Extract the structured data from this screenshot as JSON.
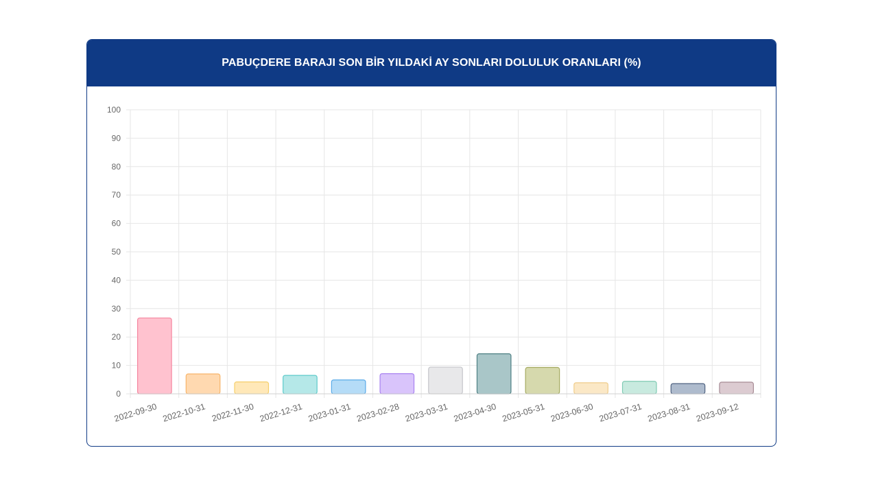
{
  "card": {
    "title": "PABUÇDERE BARAJI SON BİR YILDAKİ AY SONLARI DOLULUK ORANLARI (%)"
  },
  "colors": {
    "header": "#0f3a85",
    "grid": "#e6e6e6",
    "tick_text": "#666666"
  },
  "chart_data": {
    "type": "bar",
    "title": "PABUÇDERE BARAJI SON BİR YILDAKİ AY SONLARI DOLULUK ORANLARI (%)",
    "xlabel": "",
    "ylabel": "",
    "ylim": [
      0,
      100
    ],
    "yticks": [
      0,
      10,
      20,
      30,
      40,
      50,
      60,
      70,
      80,
      90,
      100
    ],
    "grid": true,
    "legend": "none",
    "categories": [
      "2022-09-30",
      "2022-10-31",
      "2022-11-30",
      "2022-12-31",
      "2023-01-31",
      "2023-02-28",
      "2023-03-31",
      "2023-04-30",
      "2023-05-31",
      "2023-06-30",
      "2023-07-31",
      "2023-08-31",
      "2023-09-12"
    ],
    "values": [
      26.7,
      7.0,
      4.2,
      6.5,
      4.9,
      7.1,
      9.4,
      14.1,
      9.3,
      3.9,
      4.4,
      3.6,
      4.1
    ],
    "bar_fill_colors": [
      "#ffc2cf",
      "#ffd9b0",
      "#ffe8b8",
      "#b5e8e8",
      "#b5dcf7",
      "#d9c4fb",
      "#e8e8ea",
      "#a9c6c8",
      "#d6d9ad",
      "#fbe8c6",
      "#c8eadf",
      "#aebbcd",
      "#dccbd1"
    ],
    "bar_border_colors": [
      "#f4869f",
      "#f7b56a",
      "#f5cf6c",
      "#5cc9c9",
      "#5aaae8",
      "#a881f0",
      "#c5c6cb",
      "#4d7f83",
      "#a6ab61",
      "#efcc8a",
      "#80cbb4",
      "#4f6280",
      "#a78b95"
    ]
  }
}
